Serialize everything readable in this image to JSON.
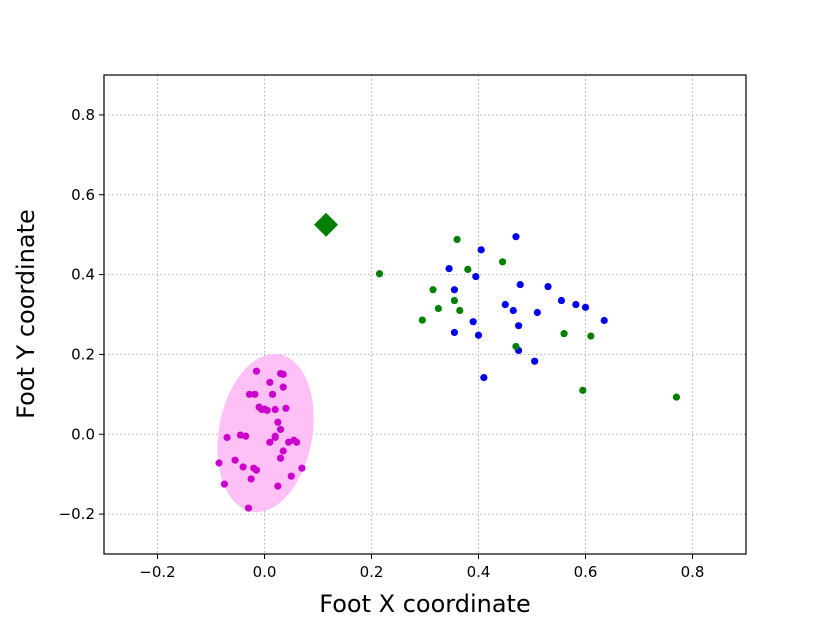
{
  "chart_data": {
    "type": "scatter",
    "title": "",
    "xlabel": "Foot X coordinate",
    "ylabel": "Foot Y coordinate",
    "xlim": [
      -0.3,
      0.9
    ],
    "ylim": [
      -0.3,
      0.9
    ],
    "x_ticks": [
      -0.2,
      0.0,
      0.2,
      0.4,
      0.6,
      0.8
    ],
    "y_ticks": [
      -0.2,
      0.0,
      0.2,
      0.4,
      0.6,
      0.8
    ],
    "x_tick_labels": [
      "−0.2",
      "0.0",
      "0.2",
      "0.4",
      "0.6",
      "0.8"
    ],
    "y_tick_labels": [
      "−0.2",
      "0.0",
      "0.2",
      "0.4",
      "0.6",
      "0.8"
    ],
    "grid": true,
    "ellipse": {
      "center": [
        0.002,
        0.003
      ],
      "width": 0.175,
      "height": 0.4,
      "angle_deg": 10,
      "color": "#ffc0f5"
    },
    "series": [
      {
        "color": "#cc00cc",
        "marker": "circle",
        "points": [
          [
            -0.085,
            -0.072
          ],
          [
            -0.075,
            -0.125
          ],
          [
            -0.07,
            -0.008
          ],
          [
            -0.055,
            -0.065
          ],
          [
            -0.045,
            -0.002
          ],
          [
            -0.04,
            -0.082
          ],
          [
            -0.035,
            -0.005
          ],
          [
            -0.03,
            -0.185
          ],
          [
            -0.028,
            0.1
          ],
          [
            -0.025,
            -0.112
          ],
          [
            -0.02,
            -0.085
          ],
          [
            -0.018,
            0.1
          ],
          [
            -0.015,
            -0.09
          ],
          [
            -0.015,
            0.158
          ],
          [
            -0.01,
            0.068
          ],
          [
            -0.005,
            0.062
          ],
          [
            0.0,
            0.063
          ],
          [
            0.005,
            0.06
          ],
          [
            0.01,
            0.13
          ],
          [
            0.01,
            -0.02
          ],
          [
            0.015,
            0.1
          ],
          [
            0.02,
            -0.005
          ],
          [
            0.02,
            0.062
          ],
          [
            0.02,
            -0.008
          ],
          [
            0.025,
            0.03
          ],
          [
            0.025,
            -0.13
          ],
          [
            0.03,
            0.012
          ],
          [
            0.03,
            0.152
          ],
          [
            0.03,
            -0.06
          ],
          [
            0.035,
            0.15
          ],
          [
            0.035,
            0.118
          ],
          [
            0.035,
            -0.042
          ],
          [
            0.04,
            0.065
          ],
          [
            0.045,
            -0.02
          ],
          [
            0.05,
            -0.105
          ],
          [
            0.055,
            -0.015
          ],
          [
            0.06,
            -0.02
          ],
          [
            0.07,
            -0.085
          ]
        ]
      },
      {
        "color": "#0000ee",
        "marker": "circle",
        "points": [
          [
            0.345,
            0.415
          ],
          [
            0.355,
            0.362
          ],
          [
            0.355,
            0.255
          ],
          [
            0.39,
            0.282
          ],
          [
            0.395,
            0.395
          ],
          [
            0.4,
            0.248
          ],
          [
            0.405,
            0.462
          ],
          [
            0.41,
            0.142
          ],
          [
            0.45,
            0.325
          ],
          [
            0.465,
            0.31
          ],
          [
            0.47,
            0.495
          ],
          [
            0.475,
            0.21
          ],
          [
            0.475,
            0.272
          ],
          [
            0.478,
            0.375
          ],
          [
            0.505,
            0.183
          ],
          [
            0.51,
            0.305
          ],
          [
            0.53,
            0.37
          ],
          [
            0.555,
            0.335
          ],
          [
            0.582,
            0.325
          ],
          [
            0.6,
            0.318
          ],
          [
            0.635,
            0.285
          ]
        ]
      },
      {
        "color": "#008000",
        "marker": "circle",
        "points": [
          [
            0.215,
            0.402
          ],
          [
            0.295,
            0.286
          ],
          [
            0.315,
            0.362
          ],
          [
            0.325,
            0.315
          ],
          [
            0.355,
            0.335
          ],
          [
            0.36,
            0.488
          ],
          [
            0.365,
            0.31
          ],
          [
            0.38,
            0.413
          ],
          [
            0.445,
            0.432
          ],
          [
            0.47,
            0.22
          ],
          [
            0.56,
            0.252
          ],
          [
            0.595,
            0.11
          ],
          [
            0.61,
            0.246
          ],
          [
            0.77,
            0.093
          ]
        ]
      },
      {
        "color": "#008000",
        "marker": "diamond",
        "points": [
          [
            0.115,
            0.525
          ]
        ]
      }
    ]
  }
}
